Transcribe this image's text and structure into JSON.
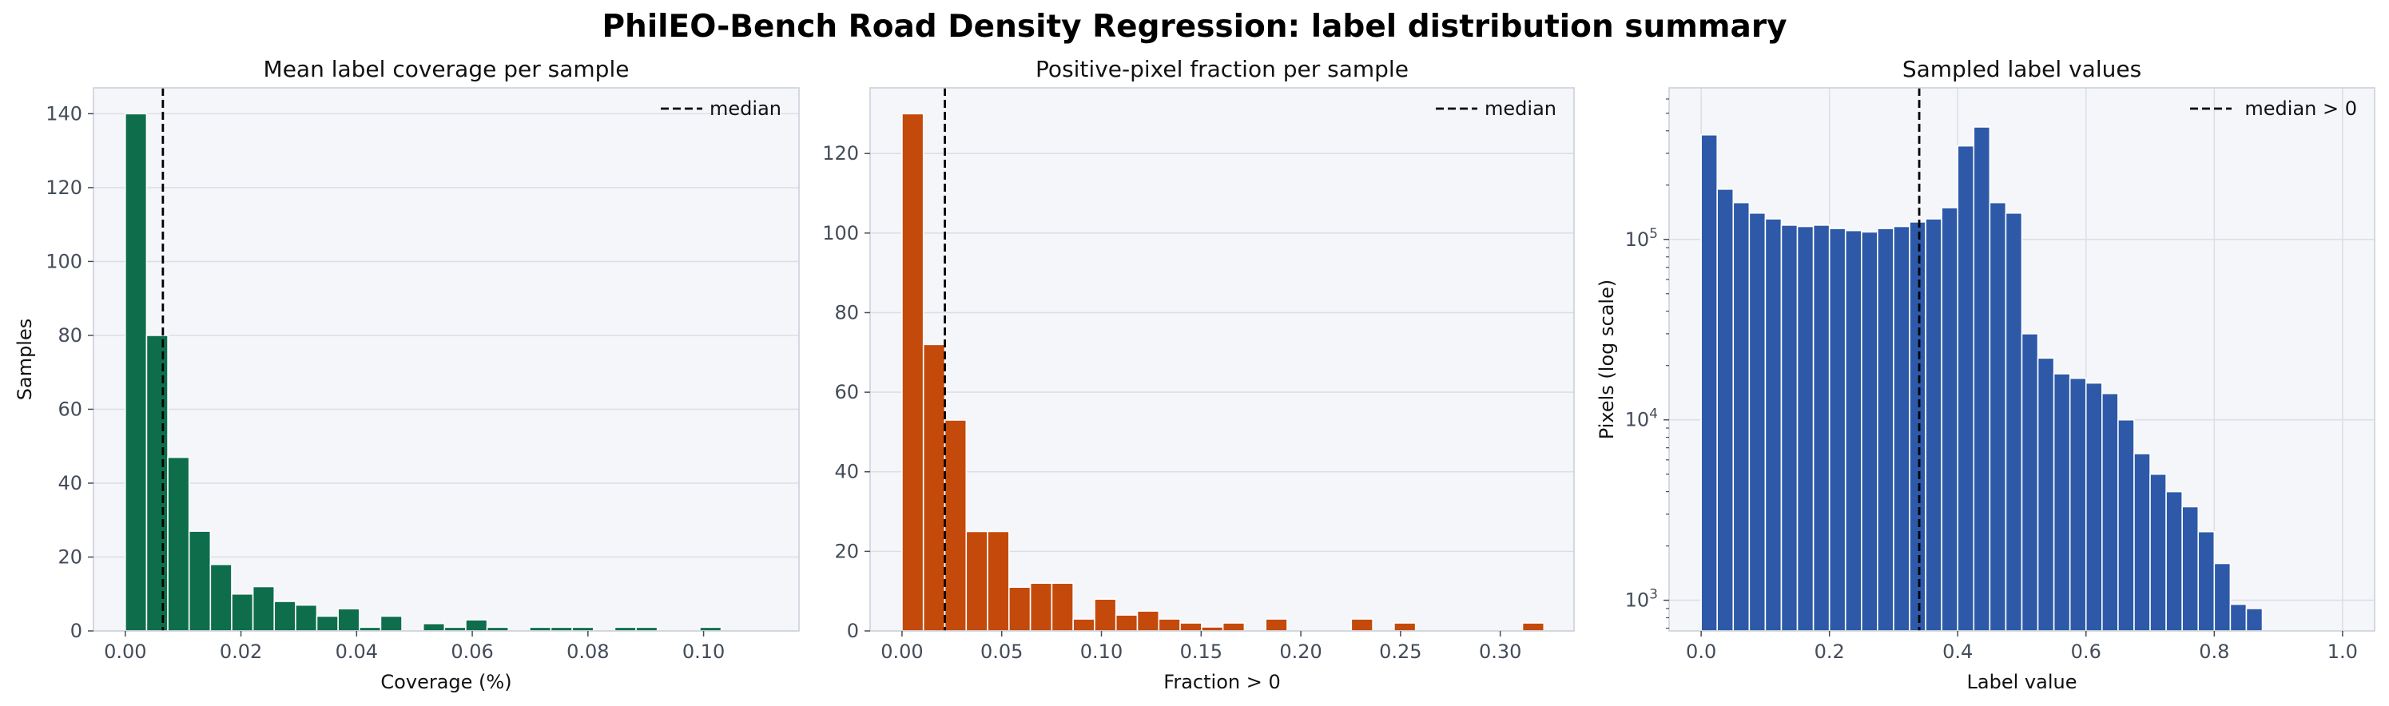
{
  "suptitle": "PhilEO-Bench Road Density Regression: label distribution summary",
  "colors": {
    "panel_bg": "#f5f6fa",
    "grid": "#dcdfe6",
    "spine": "#ccd0da",
    "tick_text": "#444c5a",
    "green": "#0e6e4c",
    "orange": "#c44a0b",
    "blue": "#2d59a8",
    "median_line": "#000000"
  },
  "chart_data": [
    {
      "type": "bar",
      "title": "Mean label coverage per sample",
      "xlabel": "Coverage (%)",
      "ylabel": "Samples",
      "yscale": "linear",
      "xlim": [
        -0.0055,
        0.1165
      ],
      "ylim": [
        0,
        147
      ],
      "xticks": [
        0.0,
        0.02,
        0.04,
        0.06,
        0.08,
        0.1
      ],
      "xtick_labels": [
        "0.00",
        "0.02",
        "0.04",
        "0.06",
        "0.08",
        "0.10"
      ],
      "yticks": [
        0,
        20,
        40,
        60,
        80,
        100,
        120,
        140
      ],
      "ytick_labels": [
        "0",
        "20",
        "40",
        "60",
        "80",
        "100",
        "120",
        "140"
      ],
      "bin_start": 0.0,
      "bin_width": 0.00368,
      "values": [
        140,
        80,
        47,
        27,
        18,
        10,
        12,
        8,
        7,
        4,
        6,
        1,
        4,
        0,
        2,
        1,
        3,
        1,
        0,
        1,
        1,
        1,
        0,
        1,
        1,
        0,
        0,
        1,
        0,
        0
      ],
      "median": 0.0065,
      "legend": {
        "label": "median",
        "position": "top-right"
      },
      "color_key": "green",
      "grid": "y"
    },
    {
      "type": "bar",
      "title": "Positive-pixel fraction per sample",
      "xlabel": "Fraction > 0",
      "ylabel": "",
      "yscale": "linear",
      "xlim": [
        -0.016,
        0.337
      ],
      "ylim": [
        0,
        136.5
      ],
      "xticks": [
        0.0,
        0.05,
        0.1,
        0.15,
        0.2,
        0.25,
        0.3
      ],
      "xtick_labels": [
        "0.00",
        "0.05",
        "0.10",
        "0.15",
        "0.20",
        "0.25",
        "0.30"
      ],
      "yticks": [
        0,
        20,
        40,
        60,
        80,
        100,
        120
      ],
      "ytick_labels": [
        "0",
        "20",
        "40",
        "60",
        "80",
        "100",
        "120"
      ],
      "bin_start": 0.0,
      "bin_width": 0.01073,
      "values": [
        130,
        72,
        53,
        25,
        25,
        11,
        12,
        12,
        3,
        8,
        4,
        5,
        3,
        2,
        1,
        2,
        0,
        3,
        0,
        0,
        0,
        3,
        0,
        2,
        0,
        0,
        0,
        0,
        0,
        2
      ],
      "median": 0.0215,
      "legend": {
        "label": "median",
        "position": "top-right"
      },
      "color_key": "orange",
      "grid": "y"
    },
    {
      "type": "bar",
      "title": "Sampled label values",
      "xlabel": "Label value",
      "ylabel": "Pixels (log scale)",
      "yscale": "log",
      "xlim": [
        -0.05,
        1.05
      ],
      "ylim_log10": [
        2.83,
        5.84
      ],
      "xticks": [
        0.0,
        0.2,
        0.4,
        0.6,
        0.8,
        1.0
      ],
      "xtick_labels": [
        "0.0",
        "0.2",
        "0.4",
        "0.6",
        "0.8",
        "1.0"
      ],
      "yticks_log10": [
        3,
        4,
        5
      ],
      "ytick_bases": [
        "10",
        "10",
        "10"
      ],
      "ytick_exponents": [
        "3",
        "4",
        "5"
      ],
      "bin_start": 0.0,
      "bin_width": 0.025,
      "values": [
        380000,
        190000,
        160000,
        140000,
        130000,
        120000,
        118000,
        120000,
        115000,
        112000,
        110000,
        115000,
        118000,
        125000,
        130000,
        150000,
        330000,
        420000,
        160000,
        140000,
        30000,
        22000,
        18000,
        17000,
        16000,
        14000,
        10000,
        6500,
        5000,
        4000,
        3300,
        2400,
        1600,
        950,
        900
      ],
      "median": 0.34,
      "legend": {
        "label": "median > 0",
        "position": "top-right"
      },
      "color_key": "blue",
      "grid": "both"
    }
  ]
}
